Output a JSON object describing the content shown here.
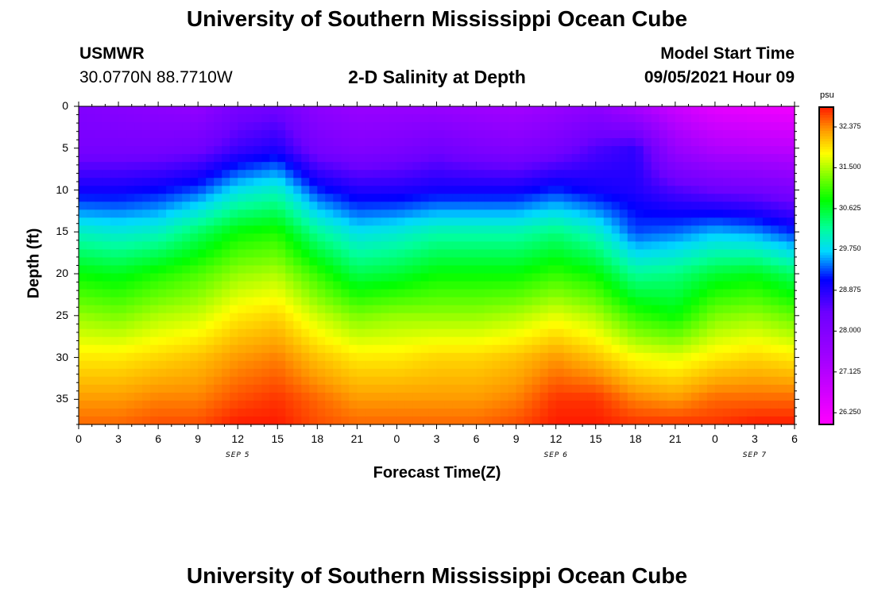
{
  "header": {
    "title": "University of Southern Mississippi Ocean Cube",
    "footer_title": "University of Southern Mississippi Ocean Cube",
    "station": "USMWR",
    "location": "30.0770N  88.7710W",
    "subtitle": "2-D Salinity at Depth",
    "model_start_label": "Model Start Time",
    "model_start_value": "09/05/2021 Hour 09"
  },
  "chart_data": {
    "type": "heatmap",
    "title": "2-D Salinity at Depth",
    "xlabel": "Forecast Time(Z)",
    "ylabel": "Depth (ft)",
    "x_ticks": [
      "0",
      "3",
      "6",
      "9",
      "12",
      "15",
      "18",
      "21",
      "0",
      "3",
      "6",
      "9",
      "12",
      "15",
      "18",
      "21",
      "0",
      "3",
      "6"
    ],
    "x_range_hours": [
      0,
      54
    ],
    "date_labels": [
      {
        "text": "SEP 5",
        "hour": 12
      },
      {
        "text": "SEP 6",
        "hour": 36
      },
      {
        "text": "SEP 7",
        "hour": 51
      }
    ],
    "y_ticks": [
      0,
      5,
      10,
      15,
      20,
      25,
      30,
      35
    ],
    "ylim": [
      0,
      38
    ],
    "colorbar": {
      "units": "psu",
      "ticks": [
        "32.375",
        "31.500",
        "30.625",
        "29.750",
        "28.875",
        "28.000",
        "27.125",
        "26.250"
      ],
      "range": [
        26.0,
        32.8
      ],
      "stops": [
        {
          "value": 26.0,
          "color": "#ff00ff"
        },
        {
          "value": 27.4,
          "color": "#a300ff"
        },
        {
          "value": 28.4,
          "color": "#6c00ff"
        },
        {
          "value": 29.1,
          "color": "#0000ff"
        },
        {
          "value": 29.7,
          "color": "#00d8ff"
        },
        {
          "value": 30.2,
          "color": "#00ff9a"
        },
        {
          "value": 30.8,
          "color": "#00ff00"
        },
        {
          "value": 31.3,
          "color": "#7aff00"
        },
        {
          "value": 31.8,
          "color": "#ffff00"
        },
        {
          "value": 32.3,
          "color": "#ff9a00"
        },
        {
          "value": 32.8,
          "color": "#ff1a00"
        }
      ]
    },
    "salinity_profiles": {
      "hours": [
        0,
        3,
        6,
        9,
        12,
        15,
        18,
        21,
        24,
        27,
        30,
        33,
        36,
        39,
        42,
        45,
        48,
        51,
        54
      ],
      "depths_ft": [
        0,
        5,
        10,
        15,
        20,
        25,
        30,
        35,
        38
      ],
      "values": [
        [
          28.0,
          28.2,
          29.0,
          30.0,
          30.8,
          31.4,
          31.9,
          32.3,
          32.5
        ],
        [
          27.9,
          28.2,
          29.0,
          29.9,
          30.7,
          31.3,
          31.9,
          32.3,
          32.5
        ],
        [
          27.8,
          28.2,
          29.1,
          30.0,
          30.9,
          31.5,
          32.0,
          32.4,
          32.6
        ],
        [
          27.7,
          28.3,
          29.3,
          30.4,
          31.1,
          31.6,
          32.1,
          32.4,
          32.6
        ],
        [
          28.2,
          28.7,
          29.8,
          30.8,
          31.4,
          31.9,
          32.3,
          32.6,
          32.8
        ],
        [
          28.3,
          28.9,
          30.0,
          30.9,
          31.5,
          32.0,
          32.4,
          32.7,
          32.8
        ],
        [
          27.8,
          28.2,
          29.2,
          30.2,
          31.0,
          31.6,
          32.1,
          32.5,
          32.6
        ],
        [
          27.6,
          28.0,
          28.9,
          29.8,
          30.5,
          31.3,
          31.9,
          32.3,
          32.5
        ],
        [
          27.6,
          28.1,
          28.9,
          29.9,
          30.6,
          31.4,
          31.9,
          32.3,
          32.5
        ],
        [
          27.6,
          28.3,
          29.0,
          30.1,
          30.8,
          31.4,
          32.0,
          32.3,
          32.5
        ],
        [
          27.5,
          28.1,
          29.0,
          30.1,
          30.8,
          31.4,
          32.0,
          32.3,
          32.5
        ],
        [
          27.4,
          28.0,
          29.0,
          30.1,
          30.8,
          31.5,
          32.1,
          32.4,
          32.6
        ],
        [
          27.6,
          28.2,
          29.2,
          30.3,
          31.0,
          31.7,
          32.3,
          32.7,
          32.8
        ],
        [
          27.8,
          28.6,
          29.0,
          30.0,
          30.8,
          31.5,
          32.1,
          32.7,
          32.8
        ],
        [
          27.3,
          28.8,
          28.9,
          29.3,
          30.2,
          31.0,
          31.8,
          32.4,
          32.7
        ],
        [
          26.8,
          27.6,
          28.6,
          29.4,
          30.3,
          30.8,
          31.7,
          32.3,
          32.7
        ],
        [
          26.4,
          27.2,
          28.4,
          29.6,
          30.6,
          31.3,
          31.9,
          32.5,
          32.7
        ],
        [
          26.3,
          27.1,
          28.3,
          29.5,
          30.7,
          31.4,
          32.0,
          32.5,
          32.8
        ],
        [
          26.2,
          27.0,
          28.1,
          29.2,
          30.4,
          31.2,
          31.9,
          32.5,
          32.8
        ]
      ]
    }
  }
}
